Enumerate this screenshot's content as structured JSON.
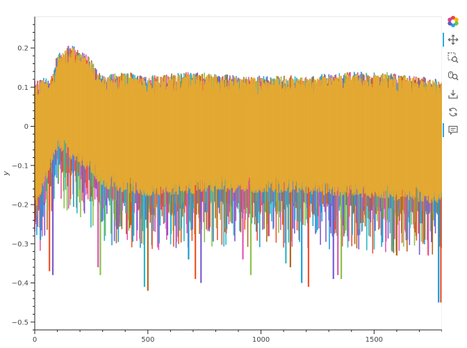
{
  "chart_data": {
    "type": "line",
    "title": "",
    "xlabel": "",
    "ylabel": "y",
    "xlim": [
      0,
      1800
    ],
    "ylim": [
      -0.52,
      0.28
    ],
    "x_ticks": [
      0,
      500,
      1000,
      1500
    ],
    "x_tick_labels": [
      "0",
      "500",
      "1000",
      "1500"
    ],
    "y_ticks": [
      -0.5,
      -0.4,
      -0.3,
      -0.2,
      -0.1,
      0,
      0.1,
      0.2
    ],
    "y_tick_labels": [
      "−0.5",
      "−0.4",
      "−0.3",
      "−0.2",
      "−0.1",
      "0",
      "0.1",
      "0.2"
    ],
    "grid": false,
    "legend": "none",
    "series_colors": [
      "#1f9ed8",
      "#f0522a",
      "#7a5bd1",
      "#e056b4",
      "#8bc34a",
      "#26b8c9",
      "#b5651d",
      "#e3a932"
    ],
    "dense_series": {
      "x_range": [
        0,
        1800
      ],
      "upper_envelope": [
        [
          0,
          0.12
        ],
        [
          80,
          0.13
        ],
        [
          100,
          0.19
        ],
        [
          160,
          0.21
        ],
        [
          240,
          0.18
        ],
        [
          270,
          0.15
        ],
        [
          300,
          0.13
        ],
        [
          400,
          0.14
        ],
        [
          500,
          0.13
        ],
        [
          700,
          0.14
        ],
        [
          900,
          0.13
        ],
        [
          1000,
          0.13
        ],
        [
          1200,
          0.13
        ],
        [
          1400,
          0.14
        ],
        [
          1550,
          0.14
        ],
        [
          1800,
          0.12
        ]
      ],
      "lower_envelope": [
        [
          0,
          -0.24
        ],
        [
          100,
          -0.08
        ],
        [
          250,
          -0.14
        ],
        [
          300,
          -0.18
        ],
        [
          500,
          -0.2
        ],
        [
          800,
          -0.19
        ],
        [
          1100,
          -0.19
        ],
        [
          1400,
          -0.2
        ],
        [
          1800,
          -0.22
        ]
      ],
      "drops": [
        [
          25,
          -0.29
        ],
        [
          65,
          -0.37
        ],
        [
          80,
          -0.38
        ],
        [
          280,
          -0.36
        ],
        [
          290,
          -0.38
        ],
        [
          485,
          -0.41
        ],
        [
          500,
          -0.42
        ],
        [
          680,
          -0.34
        ],
        [
          710,
          -0.39
        ],
        [
          735,
          -0.4
        ],
        [
          920,
          -0.34
        ],
        [
          955,
          -0.38
        ],
        [
          1110,
          -0.35
        ],
        [
          1130,
          -0.36
        ],
        [
          1180,
          -0.4
        ],
        [
          1210,
          -0.41
        ],
        [
          1320,
          -0.39
        ],
        [
          1340,
          -0.38
        ],
        [
          1355,
          -0.39
        ],
        [
          1580,
          -0.32
        ],
        [
          1600,
          -0.33
        ],
        [
          1785,
          -0.45
        ],
        [
          1795,
          -0.45
        ]
      ]
    }
  },
  "toolbar": {
    "tools": [
      {
        "icon": "bokeh-logo-icon",
        "active": false
      },
      {
        "icon": "pan-icon",
        "active": true
      },
      {
        "icon": "box-zoom-icon",
        "active": false
      },
      {
        "icon": "wheel-zoom-icon",
        "active": false
      },
      {
        "icon": "save-icon",
        "active": false
      },
      {
        "icon": "reset-icon",
        "active": false
      },
      {
        "icon": "hover-icon",
        "active": true
      }
    ]
  }
}
